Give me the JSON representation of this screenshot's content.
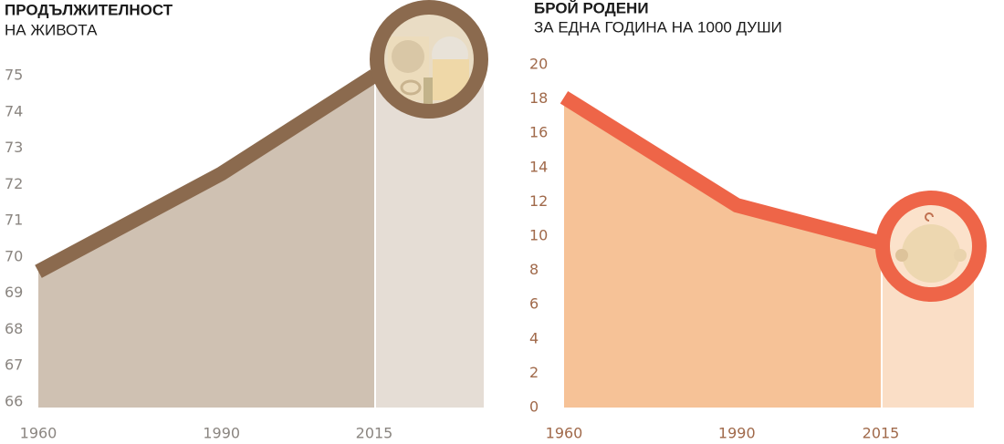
{
  "chart_data": [
    {
      "type": "area",
      "title": "ПРОДЪЛЖИТЕЛНОСТ",
      "subtitle": "НА ЖИВОТА",
      "x": [
        1960,
        1990,
        2015
      ],
      "values": [
        69.6,
        72.3,
        75.0
      ],
      "xlim": [
        1960,
        2015
      ],
      "xticks": [
        1960,
        1990,
        2015
      ],
      "ylim": [
        66,
        75
      ],
      "yticks": [
        66,
        67,
        68,
        69,
        70,
        71,
        72,
        73,
        74,
        75
      ],
      "color": "#8b6a4e",
      "fill_color": "#cfc1b2",
      "tick_color": "#8a8580"
    },
    {
      "type": "area",
      "title": "БРОЙ РОДЕНИ",
      "subtitle": "ЗА ЕДНА ГОДИНА НА 1000 ДУШИ",
      "x": [
        1960,
        1990,
        2015
      ],
      "values": [
        18.1,
        11.8,
        9.6
      ],
      "xlim": [
        1960,
        2015
      ],
      "xticks": [
        1960,
        1990,
        2015
      ],
      "ylim": [
        0,
        20
      ],
      "yticks": [
        0,
        2,
        4,
        6,
        8,
        10,
        12,
        14,
        16,
        18,
        20
      ],
      "color": "#ee6548",
      "fill_color": "#f6c297",
      "tick_color": "#a0694a"
    }
  ]
}
